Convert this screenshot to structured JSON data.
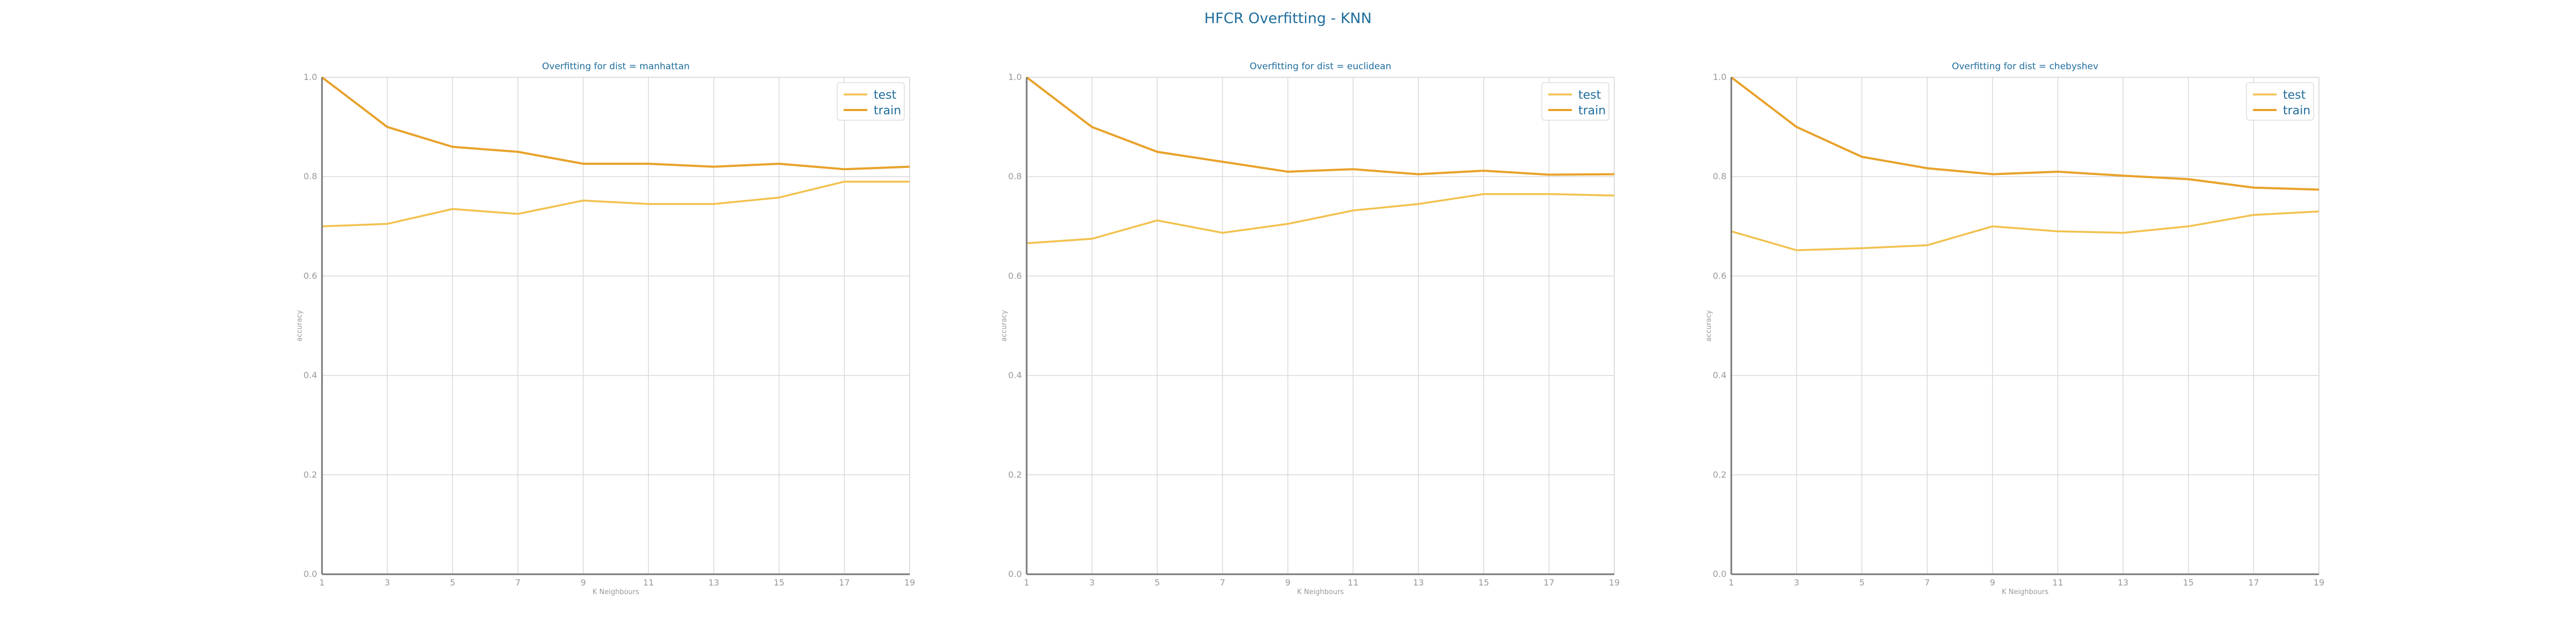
{
  "figure": {
    "title": "HFCR Overfitting - KNN"
  },
  "colors": {
    "test": "#f2c14e",
    "train": "#e8a22b",
    "grid": "#d9d9d9",
    "axis": "#777777",
    "text": "#1f6d9c",
    "tick": "#999999"
  },
  "chart_data": [
    {
      "type": "line",
      "title": "Overfitting for dist = manhattan",
      "xlabel": "K Neighbours",
      "ylabel": "accuracy",
      "x": [
        1,
        3,
        5,
        7,
        9,
        11,
        13,
        15,
        17,
        19
      ],
      "xticks": [
        "1",
        "3",
        "5",
        "7",
        "9",
        "11",
        "13",
        "15",
        "17",
        "19"
      ],
      "ylim": [
        0.0,
        1.0
      ],
      "yticks": [
        "0.0",
        "0.2",
        "0.4",
        "0.6",
        "0.8",
        "1.0"
      ],
      "grid": true,
      "legend": "top-right",
      "series": [
        {
          "name": "test",
          "color": "#f2c14e",
          "values": [
            0.7,
            0.705,
            0.735,
            0.725,
            0.752,
            0.745,
            0.745,
            0.758,
            0.79,
            0.79
          ]
        },
        {
          "name": "train",
          "color": "#e8a22b",
          "values": [
            1.0,
            0.9,
            0.86,
            0.85,
            0.826,
            0.826,
            0.82,
            0.826,
            0.815,
            0.82
          ]
        }
      ]
    },
    {
      "type": "line",
      "title": "Overfitting for dist = euclidean",
      "xlabel": "K Neighbours",
      "ylabel": "accuracy",
      "x": [
        1,
        3,
        5,
        7,
        9,
        11,
        13,
        15,
        17,
        19
      ],
      "xticks": [
        "1",
        "3",
        "5",
        "7",
        "9",
        "11",
        "13",
        "15",
        "17",
        "19"
      ],
      "ylim": [
        0.0,
        1.0
      ],
      "yticks": [
        "0.0",
        "0.2",
        "0.4",
        "0.6",
        "0.8",
        "1.0"
      ],
      "grid": true,
      "legend": "top-right",
      "series": [
        {
          "name": "test",
          "color": "#f2c14e",
          "values": [
            0.666,
            0.675,
            0.712,
            0.687,
            0.705,
            0.732,
            0.745,
            0.765,
            0.765,
            0.762
          ]
        },
        {
          "name": "train",
          "color": "#e8a22b",
          "values": [
            1.0,
            0.9,
            0.85,
            0.83,
            0.81,
            0.815,
            0.805,
            0.812,
            0.804,
            0.805
          ]
        }
      ]
    },
    {
      "type": "line",
      "title": "Overfitting for dist = chebyshev",
      "xlabel": "K Neighbours",
      "ylabel": "accuracy",
      "x": [
        1,
        3,
        5,
        7,
        9,
        11,
        13,
        15,
        17,
        19
      ],
      "xticks": [
        "1",
        "3",
        "5",
        "7",
        "9",
        "11",
        "13",
        "15",
        "17",
        "19"
      ],
      "ylim": [
        0.0,
        1.0
      ],
      "yticks": [
        "0.0",
        "0.2",
        "0.4",
        "0.6",
        "0.8",
        "1.0"
      ],
      "grid": true,
      "legend": "top-right",
      "series": [
        {
          "name": "test",
          "color": "#f2c14e",
          "values": [
            0.69,
            0.652,
            0.656,
            0.662,
            0.7,
            0.69,
            0.687,
            0.7,
            0.723,
            0.73
          ]
        },
        {
          "name": "train",
          "color": "#e8a22b",
          "values": [
            1.0,
            0.9,
            0.84,
            0.817,
            0.805,
            0.81,
            0.802,
            0.795,
            0.778,
            0.774
          ]
        }
      ]
    }
  ]
}
